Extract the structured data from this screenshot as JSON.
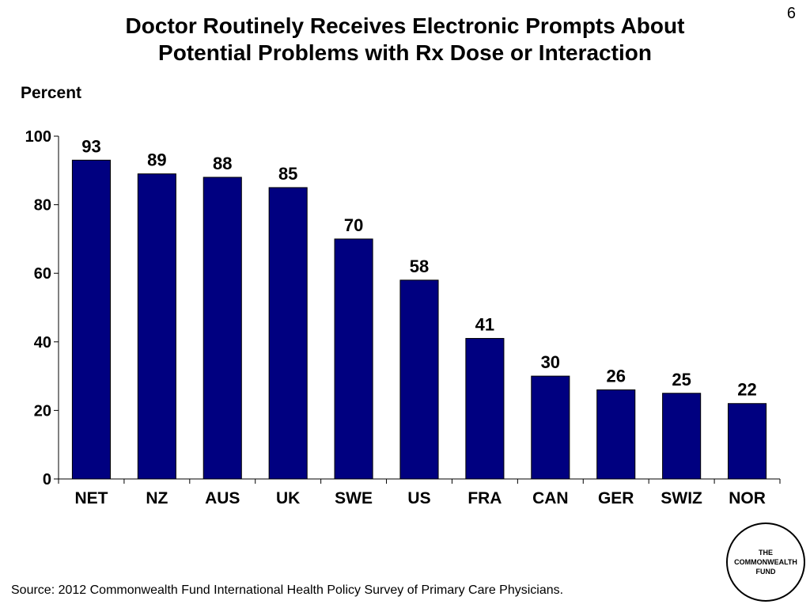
{
  "page_number": "6",
  "source": "Source: 2012 Commonwealth Fund International Health Policy Survey of Primary Care Physicians.",
  "logo": {
    "line1": "THE",
    "line2": "COMMONWEALTH",
    "line3": "FUND"
  },
  "colors": {
    "bar": "#000080",
    "axis": "#000000"
  },
  "chart_data": {
    "type": "bar",
    "title_line1": "Doctor Routinely Receives Electronic Prompts About",
    "title_line2": "Potential Problems with Rx Dose or Interaction",
    "ylabel": "Percent",
    "xlabel": "",
    "categories": [
      "NET",
      "NZ",
      "AUS",
      "UK",
      "SWE",
      "US",
      "FRA",
      "CAN",
      "GER",
      "SWIZ",
      "NOR"
    ],
    "values": [
      93,
      89,
      88,
      85,
      70,
      58,
      41,
      30,
      26,
      25,
      22
    ],
    "ylim": [
      0,
      100
    ],
    "yticks": [
      0,
      20,
      40,
      60,
      80,
      100
    ],
    "grid": false,
    "legend": "none"
  }
}
